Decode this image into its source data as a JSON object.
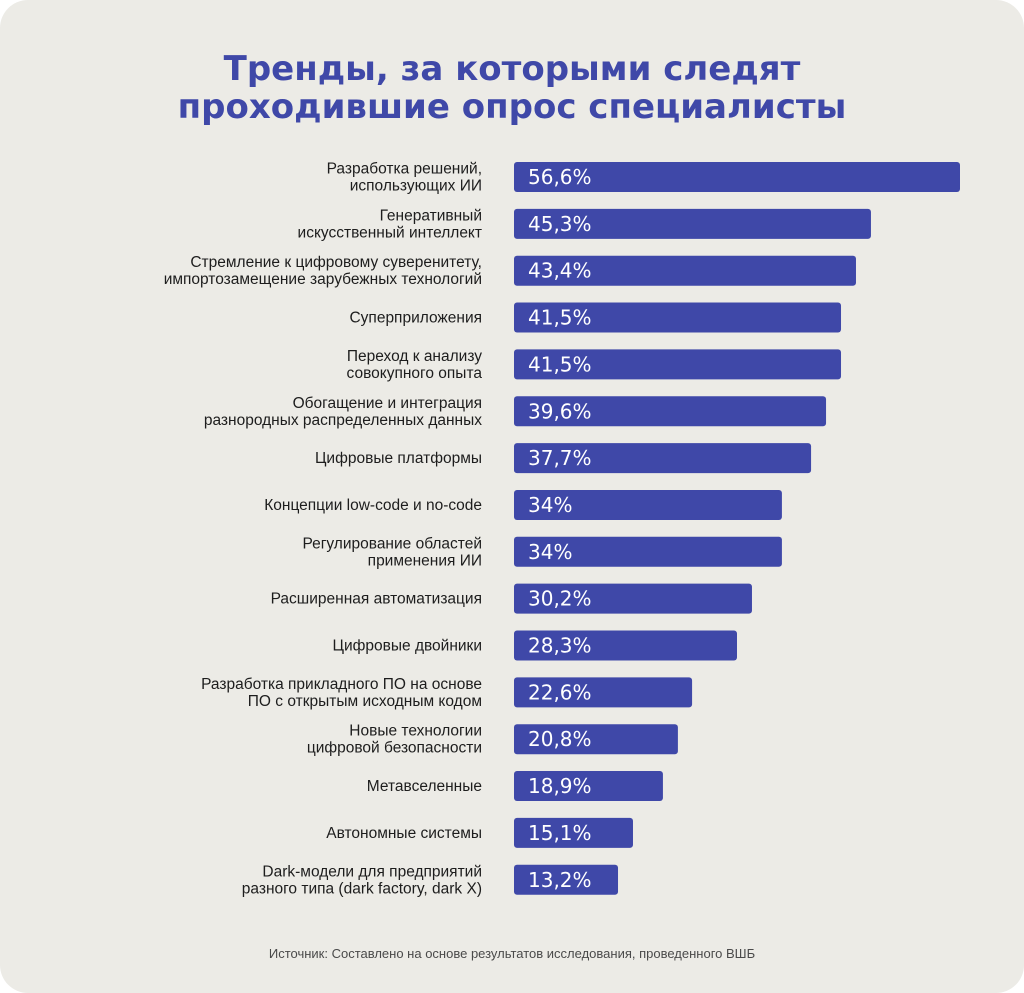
{
  "chart_data": {
    "type": "bar",
    "orientation": "horizontal",
    "title_lines": [
      "Тренды, за которыми следят",
      "проходившие опрос специалисты"
    ],
    "categories": [
      [
        "Разработка решений,",
        "использующих ИИ"
      ],
      [
        "Генеративный",
        "искусственный интеллект"
      ],
      [
        "Стремление к цифровому суверенитету,",
        "импортозамещение зарубежных технологий"
      ],
      [
        "Суперприложения"
      ],
      [
        "Переход к анализу",
        "совокупного опыта"
      ],
      [
        "Обогащение и интеграция",
        "разнородных распределенных данных"
      ],
      [
        "Цифровые платформы"
      ],
      [
        "Концепции low-code и no-code"
      ],
      [
        "Регулирование областей",
        "применения ИИ"
      ],
      [
        "Расширенная автоматизация"
      ],
      [
        "Цифровые двойники"
      ],
      [
        "Разработка прикладного ПО на основе",
        "ПО с открытым исходным кодом"
      ],
      [
        "Новые технологии",
        "цифровой безопасности"
      ],
      [
        "Метавселенные"
      ],
      [
        "Автономные системы"
      ],
      [
        "Dark-модели для предприятий",
        "разного типа (dark factory, dark X)"
      ]
    ],
    "values": [
      56.6,
      45.3,
      43.4,
      41.5,
      41.5,
      39.6,
      37.7,
      34,
      34,
      30.2,
      28.3,
      22.6,
      20.8,
      18.9,
      15.1,
      13.2
    ],
    "value_labels": [
      "56,6%",
      "45,3%",
      "43,4%",
      "41,5%",
      "41,5%",
      "39,6%",
      "37,7%",
      "34%",
      "34%",
      "30,2%",
      "28,3%",
      "22,6%",
      "20,8%",
      "18,9%",
      "15,1%",
      "13,2%"
    ],
    "xlim": [
      0,
      56.6
    ],
    "grid": false,
    "bar_color": "#3f48a8"
  },
  "source_text": "Источник: Составлено на основе результатов исследования, проведенного ВШБ",
  "colors": {
    "background": "#ecebe6",
    "accent": "#3f48a8",
    "text": "#1d1d1d"
  }
}
